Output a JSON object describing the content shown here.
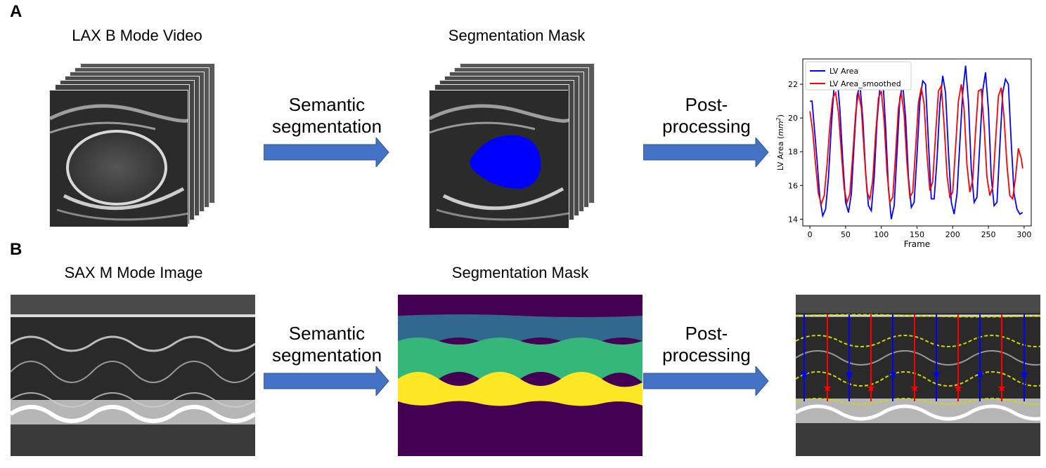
{
  "panels": {
    "a": {
      "label": "A",
      "input_title": "LAX B Mode Video",
      "step1_label": "Semantic\nsegmentation",
      "mask_title": "Segmentation Mask",
      "step2_label": "Post-\nprocessing"
    },
    "b": {
      "label": "B",
      "input_title": "SAX M Mode Image",
      "step1_label": "Semantic\nsegmentation",
      "mask_title": "Segmentation Mask",
      "step2_label": "Post-\nprocessing"
    }
  },
  "colors": {
    "arrow": "#4472c4",
    "lv_mask": "#0000ff",
    "mask_bg": "#440154",
    "mask_band1": "#31688e",
    "mask_band2": "#35b779",
    "mask_band3": "#fde725",
    "series_raw": "#0000ff",
    "series_smoothed": "#ff0000",
    "overlay_line": "#d4d400"
  },
  "chart_data": {
    "type": "line",
    "xlabel": "Frame",
    "ylabel": "LV Area (mm²)",
    "ylabel_prefix": "LV Area (",
    "ylabel_unit": "mm",
    "ylabel_exp": "2",
    "ylabel_suffix": ")",
    "xlim": [
      -10,
      310
    ],
    "ylim": [
      13.6,
      23.5
    ],
    "xticks": [
      0,
      50,
      100,
      150,
      200,
      250,
      300
    ],
    "yticks": [
      14,
      16,
      18,
      20,
      22
    ],
    "legend_position": "top-left",
    "series": [
      {
        "name": "LV Area",
        "color": "#0000ff",
        "x": [
          0,
          3,
          6,
          10,
          14,
          18,
          22,
          26,
          30,
          34,
          38,
          42,
          46,
          50,
          54,
          58,
          62,
          66,
          70,
          74,
          78,
          82,
          86,
          90,
          94,
          98,
          102,
          106,
          110,
          114,
          118,
          122,
          126,
          130,
          134,
          138,
          142,
          146,
          150,
          154,
          158,
          162,
          166,
          170,
          174,
          178,
          182,
          186,
          190,
          194,
          198,
          202,
          206,
          210,
          214,
          218,
          222,
          226,
          230,
          234,
          238,
          242,
          246,
          250,
          254,
          258,
          262,
          266,
          270,
          274,
          278,
          282,
          286,
          290,
          294,
          298
        ],
        "values": [
          21.0,
          21.0,
          19.5,
          17.5,
          15.2,
          14.2,
          14.6,
          16.5,
          19.5,
          22.0,
          22.5,
          20.5,
          17.5,
          15.0,
          14.4,
          15.5,
          18.5,
          21.3,
          22.0,
          20.0,
          16.8,
          14.8,
          14.5,
          16.5,
          19.8,
          21.8,
          22.4,
          19.5,
          15.8,
          14.0,
          14.8,
          18.0,
          21.2,
          22.0,
          20.0,
          16.5,
          14.7,
          15.0,
          17.8,
          21.0,
          22.2,
          22.0,
          18.5,
          15.2,
          15.2,
          17.5,
          20.8,
          22.5,
          21.5,
          18.0,
          15.0,
          14.3,
          15.5,
          18.5,
          21.5,
          23.1,
          21.0,
          17.0,
          15.0,
          15.3,
          18.5,
          21.6,
          22.7,
          20.5,
          16.5,
          14.8,
          15.0,
          18.3,
          21.5,
          22.3,
          22.0,
          18.5,
          15.5,
          14.6,
          14.3,
          14.4
        ]
      },
      {
        "name": "LV Area_smoothed",
        "color": "#ff0000",
        "x": [
          0,
          4,
          8,
          12,
          16,
          20,
          24,
          28,
          32,
          36,
          40,
          44,
          48,
          52,
          56,
          60,
          64,
          68,
          72,
          76,
          80,
          84,
          88,
          92,
          96,
          100,
          104,
          108,
          112,
          116,
          120,
          124,
          128,
          132,
          136,
          140,
          144,
          148,
          152,
          156,
          160,
          164,
          168,
          172,
          176,
          180,
          184,
          188,
          192,
          196,
          200,
          204,
          208,
          212,
          216,
          220,
          224,
          228,
          232,
          236,
          240,
          244,
          248,
          252,
          256,
          260,
          264,
          268,
          272,
          276,
          280,
          284,
          288,
          292,
          296,
          298
        ],
        "values": [
          20.4,
          19.2,
          17.2,
          15.5,
          14.9,
          15.4,
          17.2,
          19.6,
          21.2,
          21.5,
          20.3,
          18.0,
          15.8,
          15.0,
          15.5,
          17.8,
          20.3,
          21.5,
          20.6,
          18.0,
          15.6,
          15.2,
          16.3,
          19.0,
          21.2,
          21.6,
          19.8,
          16.8,
          15.0,
          15.3,
          17.8,
          20.6,
          21.5,
          20.2,
          17.3,
          15.3,
          15.6,
          18.2,
          20.9,
          21.8,
          20.8,
          17.8,
          15.7,
          16.2,
          19.0,
          21.6,
          21.9,
          19.6,
          16.6,
          15.3,
          15.6,
          18.2,
          21.0,
          22.0,
          20.5,
          17.2,
          15.6,
          16.3,
          19.2,
          21.6,
          21.7,
          19.5,
          16.5,
          15.4,
          15.9,
          18.6,
          21.3,
          21.8,
          20.0,
          17.2,
          15.4,
          15.2,
          16.5,
          18.2,
          17.6,
          17.0
        ]
      }
    ]
  }
}
